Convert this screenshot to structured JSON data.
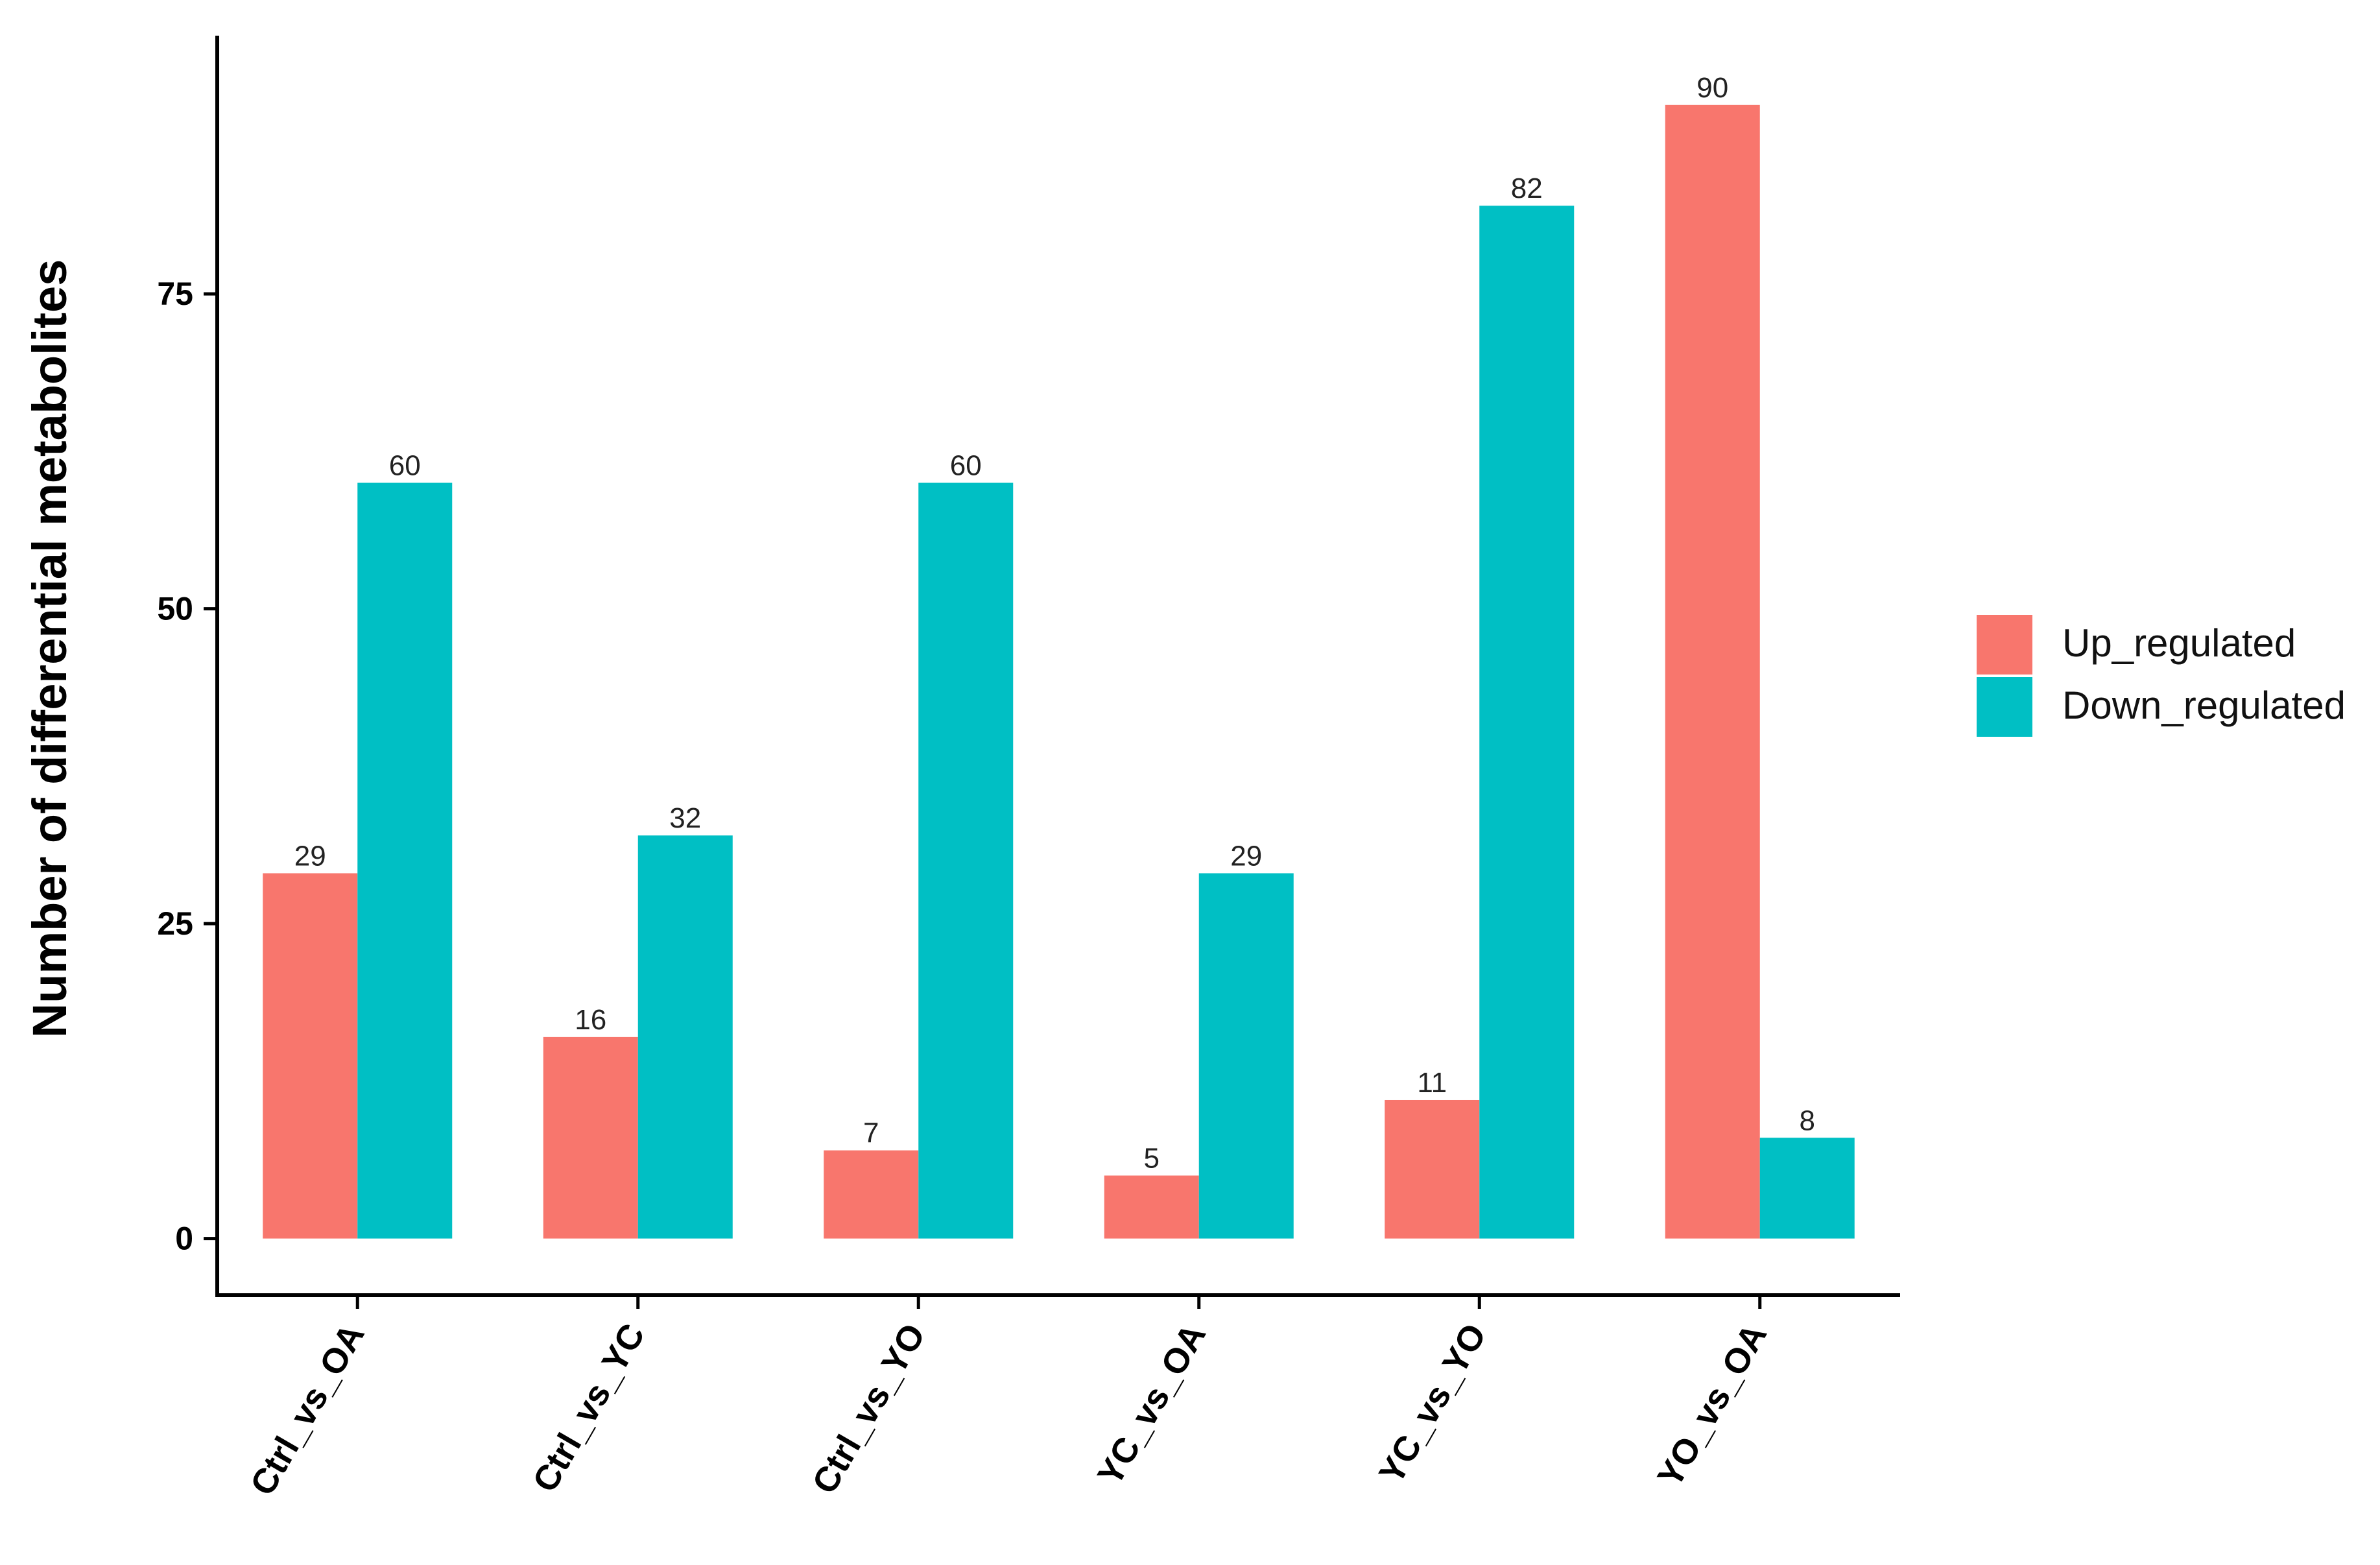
{
  "chart_data": {
    "type": "bar",
    "title": "",
    "xlabel": "",
    "ylabel": "Number of differential metabolites",
    "categories": [
      "Ctrl_vs_OA",
      "Ctrl_vs_YC",
      "Ctrl_vs_YO",
      "YC_vs_OA",
      "YC_vs_YO",
      "YO_vs_OA"
    ],
    "series": [
      {
        "name": "Up_regulated",
        "color": "#F8766D",
        "values": [
          29,
          16,
          7,
          5,
          11,
          90
        ]
      },
      {
        "name": "Down_regulated",
        "color": "#00BFC4",
        "values": [
          60,
          32,
          60,
          29,
          82,
          8
        ]
      }
    ],
    "yticks": [
      0,
      25,
      50,
      75
    ],
    "ylim": [
      -4.5,
      95.5
    ],
    "grid": false,
    "legend_position": "right",
    "data_labels": true
  }
}
